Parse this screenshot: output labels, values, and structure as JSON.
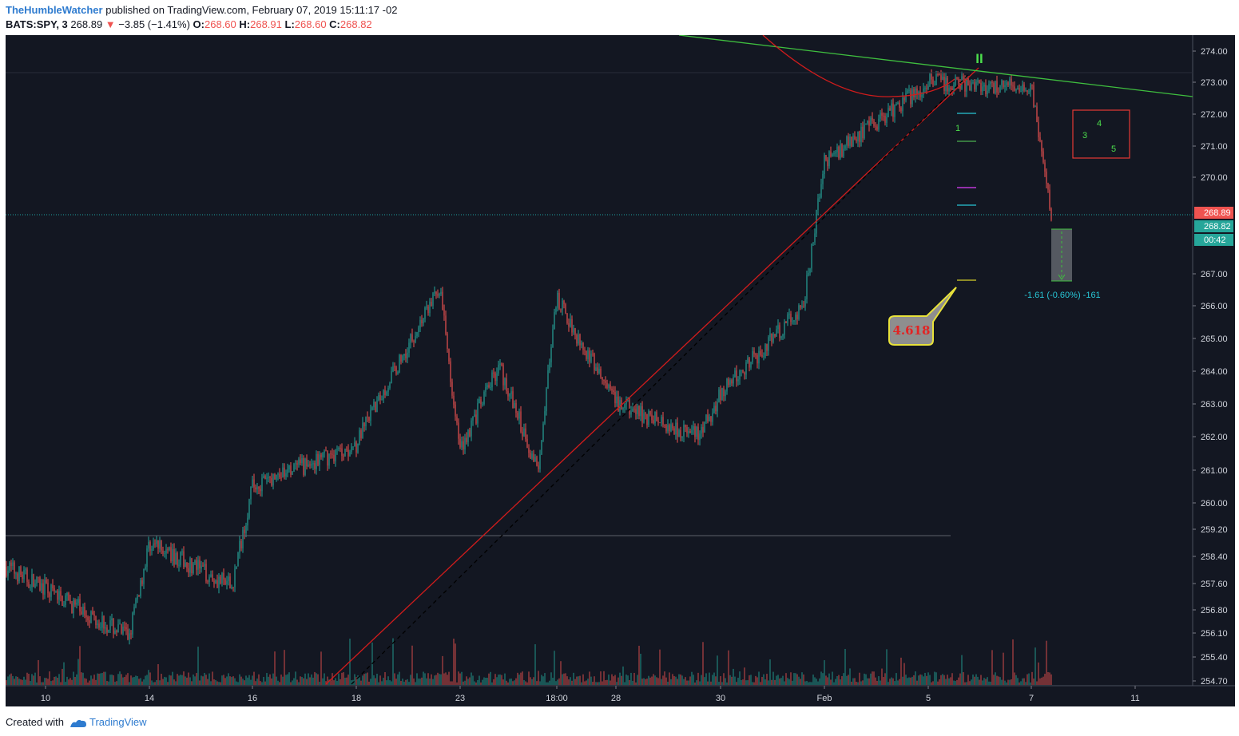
{
  "header": {
    "author": "TheHumbleWatcher",
    "published": "published on TradingView.com, February 07, 2019 15:11:17 -02",
    "symbol": "BATS:SPY, 3",
    "last": "268.89",
    "change": "−3.85 (−1.41%)",
    "o_label": "O:",
    "o_value": "268.60",
    "h_label": "H:",
    "h_value": "268.91",
    "l_label": "L:",
    "l_value": "268.60",
    "c_label": "C:",
    "c_value": "268.82"
  },
  "footer": {
    "created_with": "Created with",
    "brand": "TradingView"
  },
  "colors": {
    "background": "#131722",
    "up": "#26a69a",
    "down": "#ef5350",
    "trend_red": "#d01c1c",
    "trend_green": "#3fbf3f",
    "fib_yellow": "#d6d02a",
    "label_cyan": "#28c6d6"
  },
  "chart_data": {
    "type": "candlestick",
    "ylim": [
      254.7,
      274.4
    ],
    "y_ticks": [
      "274.00",
      "273.00",
      "272.00",
      "271.00",
      "270.00",
      "267.00",
      "266.00",
      "265.00",
      "264.00",
      "263.00",
      "262.00",
      "261.00",
      "260.00",
      "259.20",
      "258.40",
      "257.60",
      "256.80",
      "256.10",
      "255.40",
      "254.70"
    ],
    "x_ticks": [
      "10",
      "14",
      "16",
      "18",
      "23",
      "18:00",
      "28",
      "30",
      "Feb",
      "5",
      "7",
      "11"
    ],
    "price_path": [
      {
        "pos": "10",
        "price": 258.1
      },
      {
        "pos": "10",
        "price": 256.0
      },
      {
        "pos": "14",
        "price": 258.8
      },
      {
        "pos": "14",
        "price": 257.5
      },
      {
        "pos": "16",
        "price": 260.5
      },
      {
        "pos": "16",
        "price": 261.5
      },
      {
        "pos": "18",
        "price": 261.8
      },
      {
        "pos": "18",
        "price": 266.6
      },
      {
        "pos": "23",
        "price": 261.6
      },
      {
        "pos": "23",
        "price": 264.2
      },
      {
        "pos": "23",
        "price": 261.0
      },
      {
        "pos": "18:00",
        "price": 266.2
      },
      {
        "pos": "28",
        "price": 263.0
      },
      {
        "pos": "28",
        "price": 262.0
      },
      {
        "pos": "30",
        "price": 263.3
      },
      {
        "pos": "30",
        "price": 266.0
      },
      {
        "pos": "Feb",
        "price": 270.5
      },
      {
        "pos": "5",
        "price": 273.0
      },
      {
        "pos": "7",
        "price": 272.8
      },
      {
        "pos": "7",
        "price": 268.8
      }
    ],
    "last_price_labels": [
      "268.89",
      "268.82",
      "00:42"
    ],
    "annotations": {
      "fib_label": "4.618",
      "measure_label": "-1.61 (-0.60%) -161",
      "wave_1": "1",
      "wave_3": "3",
      "wave_4": "4",
      "wave_5": "5",
      "wave_top": "II"
    }
  }
}
